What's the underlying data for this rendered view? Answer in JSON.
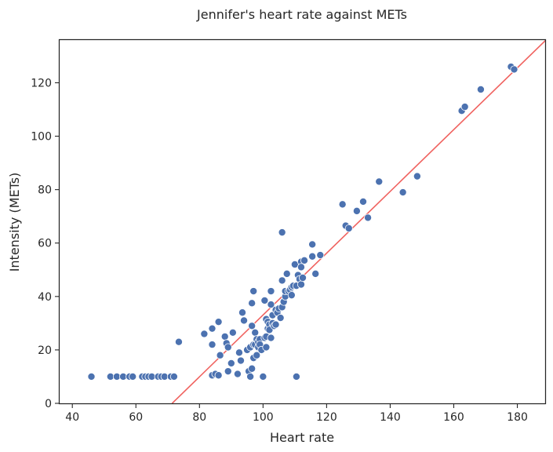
{
  "chart_data": {
    "type": "scatter",
    "title": "Jennifer's heart rate against METs",
    "xlabel": "Heart rate",
    "ylabel": "Intensity (METs)",
    "xlim": [
      36,
      189
    ],
    "ylim": [
      0,
      136
    ],
    "xticks": [
      40,
      60,
      80,
      100,
      120,
      140,
      160,
      180
    ],
    "yticks": [
      0,
      20,
      40,
      60,
      80,
      100,
      120
    ],
    "grid": false,
    "colors": {
      "points": "#4c72b0",
      "point_edge": "#ffffff",
      "fit_line": "#f0625f",
      "axes": "#262626",
      "text": "#262626"
    },
    "series": [
      {
        "points": [
          [
            46,
            10
          ],
          [
            52,
            10
          ],
          [
            54,
            10
          ],
          [
            56,
            10
          ],
          [
            58,
            10
          ],
          [
            59,
            10
          ],
          [
            62,
            10
          ],
          [
            63,
            10
          ],
          [
            64,
            10
          ],
          [
            65,
            10
          ],
          [
            67,
            10
          ],
          [
            68,
            10
          ],
          [
            69,
            10
          ],
          [
            71,
            10
          ],
          [
            72,
            10
          ],
          [
            73.5,
            23
          ],
          [
            81.5,
            26
          ],
          [
            84,
            28
          ],
          [
            84,
            22
          ],
          [
            84,
            10.5
          ],
          [
            85,
            11
          ],
          [
            86,
            30.5
          ],
          [
            86,
            10.5
          ],
          [
            86.5,
            18
          ],
          [
            88,
            25
          ],
          [
            88.5,
            22.5
          ],
          [
            89,
            21
          ],
          [
            89,
            12
          ],
          [
            90,
            15
          ],
          [
            90.5,
            26.5
          ],
          [
            92,
            11
          ],
          [
            92.5,
            19
          ],
          [
            93,
            16
          ],
          [
            93.5,
            34
          ],
          [
            94,
            31
          ],
          [
            95,
            20
          ],
          [
            95.5,
            12
          ],
          [
            96,
            10
          ],
          [
            96,
            21
          ],
          [
            96.5,
            37.5
          ],
          [
            96.5,
            29
          ],
          [
            96.5,
            13
          ],
          [
            97,
            42
          ],
          [
            97,
            22
          ],
          [
            97,
            17
          ],
          [
            97.5,
            22
          ],
          [
            97.5,
            26.5
          ],
          [
            98,
            24
          ],
          [
            98,
            18
          ],
          [
            98.5,
            23
          ],
          [
            98.5,
            21
          ],
          [
            99,
            24
          ],
          [
            99,
            22
          ],
          [
            99.5,
            20
          ],
          [
            100,
            10
          ],
          [
            100.5,
            38.5
          ],
          [
            100.5,
            24.5
          ],
          [
            101,
            25
          ],
          [
            101,
            21
          ],
          [
            101,
            31.5
          ],
          [
            101.5,
            30.5
          ],
          [
            101.5,
            28
          ],
          [
            102,
            29.5
          ],
          [
            102,
            27.5
          ],
          [
            102.5,
            37
          ],
          [
            102.5,
            42
          ],
          [
            102.5,
            24.5
          ],
          [
            103,
            33
          ],
          [
            103,
            30
          ],
          [
            103.5,
            29
          ],
          [
            104,
            35
          ],
          [
            104,
            29.5
          ],
          [
            104.5,
            34
          ],
          [
            105,
            35.5
          ],
          [
            105.5,
            32
          ],
          [
            106,
            46
          ],
          [
            106,
            36
          ],
          [
            106,
            64
          ],
          [
            106.5,
            38
          ],
          [
            107,
            40
          ],
          [
            107,
            42
          ],
          [
            107.5,
            48.5
          ],
          [
            108,
            42
          ],
          [
            108.5,
            42.5
          ],
          [
            109,
            43.5
          ],
          [
            109,
            40.5
          ],
          [
            109.5,
            44
          ],
          [
            110,
            52
          ],
          [
            110.5,
            44
          ],
          [
            110.5,
            10
          ],
          [
            111,
            48
          ],
          [
            111.5,
            46.5
          ],
          [
            112,
            53
          ],
          [
            112,
            51
          ],
          [
            112,
            44.5
          ],
          [
            112.5,
            47
          ],
          [
            113,
            53.5
          ],
          [
            115.5,
            59.5
          ],
          [
            115.5,
            55
          ],
          [
            116.5,
            48.5
          ],
          [
            118,
            55.5
          ],
          [
            125,
            74.5
          ],
          [
            126,
            66.5
          ],
          [
            127,
            65.5
          ],
          [
            129.5,
            72
          ],
          [
            131.5,
            75.5
          ],
          [
            133,
            69.5
          ],
          [
            136.5,
            83
          ],
          [
            144,
            79
          ],
          [
            148.5,
            85
          ],
          [
            162.5,
            109.5
          ],
          [
            163.5,
            111
          ],
          [
            168.5,
            117.5
          ],
          [
            178,
            126
          ],
          [
            179,
            125
          ]
        ]
      }
    ],
    "fit_line": [
      [
        71.4,
        0
      ],
      [
        189,
        136
      ]
    ]
  }
}
